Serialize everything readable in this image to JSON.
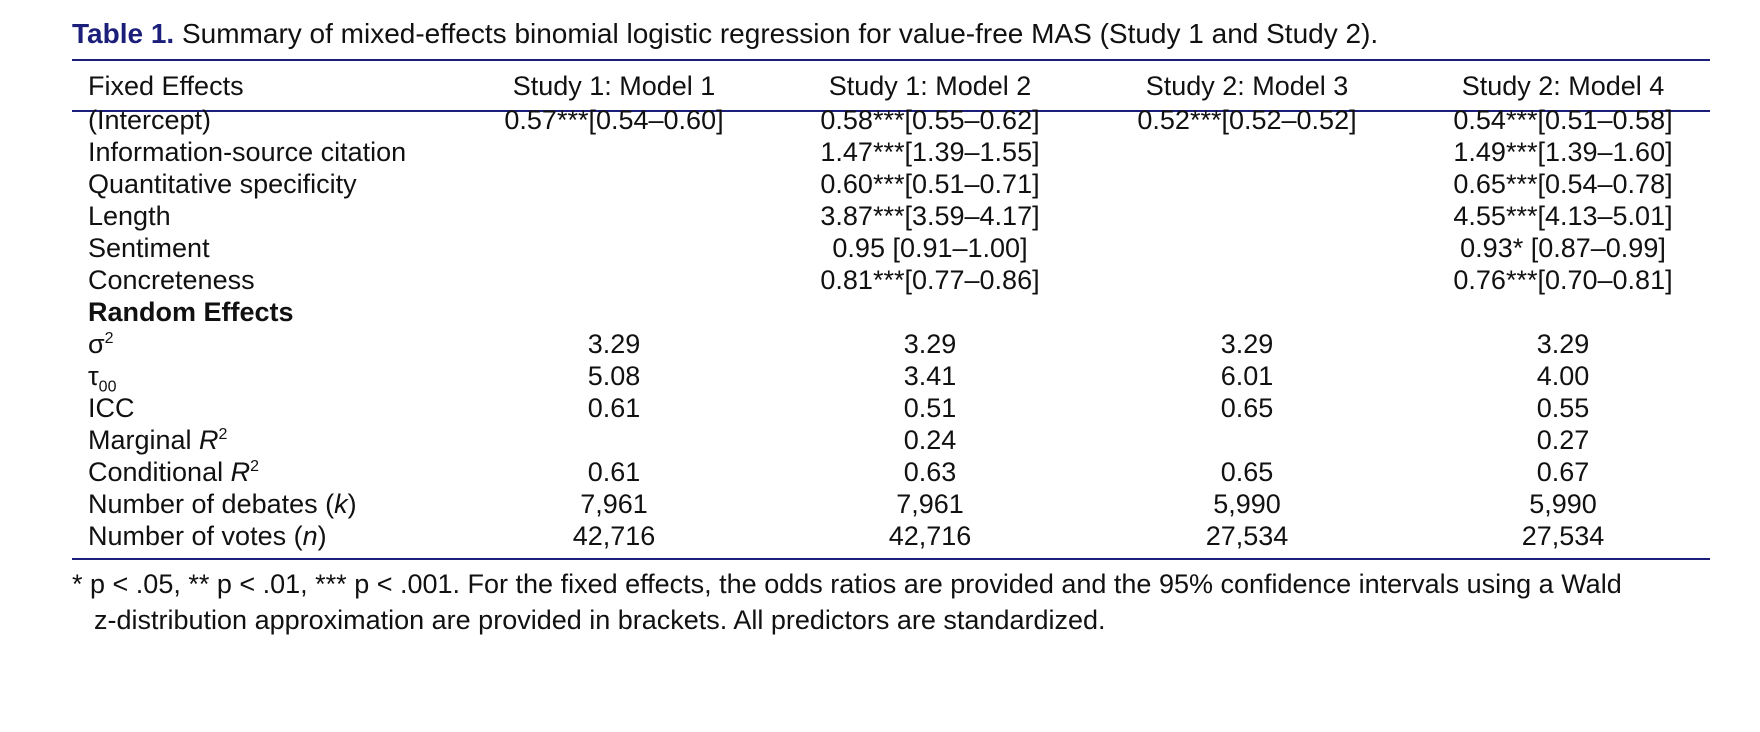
{
  "caption": {
    "label": "Table 1.",
    "text": "Summary of mixed-effects binomial logistic regression for value-free MAS (Study 1 and Study 2)."
  },
  "header": [
    "Fixed Effects",
    "Study 1: Model 1",
    "Study 1: Model 2",
    "Study 2: Model 3",
    "Study 2: Model 4"
  ],
  "fixed_effects": [
    {
      "label": "(Intercept)",
      "values": [
        "0.57***[0.54–0.60]",
        "0.58***[0.55–0.62]",
        "0.52***[0.52–0.52]",
        "0.54***[0.51–0.58]"
      ]
    },
    {
      "label": "Information-source citation",
      "values": [
        "",
        "1.47***[1.39–1.55]",
        "",
        "1.49***[1.39–1.60]"
      ]
    },
    {
      "label": "Quantitative specificity",
      "values": [
        "",
        "0.60***[0.51–0.71]",
        "",
        "0.65***[0.54–0.78]"
      ]
    },
    {
      "label": "Length",
      "values": [
        "",
        "3.87***[3.59–4.17]",
        "",
        "4.55***[4.13–5.01]"
      ]
    },
    {
      "label": "Sentiment",
      "values": [
        "",
        "0.95 [0.91–1.00]",
        "",
        "0.93* [0.87–0.99]"
      ]
    },
    {
      "label": "Concreteness",
      "values": [
        "",
        "0.81***[0.77–0.86]",
        "",
        "0.76***[0.70–0.81]"
      ]
    }
  ],
  "random_effects_heading": "Random Effects",
  "random_effects": [
    {
      "label_base": "σ",
      "label_sup": "2",
      "values": [
        "3.29",
        "3.29",
        "3.29",
        "3.29"
      ]
    },
    {
      "label_base": "τ",
      "label_sub": "00",
      "values": [
        "5.08",
        "3.41",
        "6.01",
        "4.00"
      ]
    },
    {
      "label_base": "ICC",
      "values": [
        "0.61",
        "0.51",
        "0.65",
        "0.55"
      ]
    },
    {
      "label_base": "Marginal ",
      "label_italic": "R",
      "label_sup": "2",
      "values": [
        "",
        "0.24",
        "",
        "0.27"
      ]
    },
    {
      "label_base": "Conditional ",
      "label_italic": "R",
      "label_sup": "2",
      "values": [
        "0.61",
        "0.63",
        "0.65",
        "0.67"
      ]
    },
    {
      "label_base": "Number of debates (",
      "label_italic": "k",
      "label_after": ")",
      "values": [
        "7,961",
        "7,961",
        "5,990",
        "5,990"
      ]
    },
    {
      "label_base": "Number of votes (",
      "label_italic": "n",
      "label_after": ")",
      "values": [
        "42,716",
        "42,716",
        "27,534",
        "27,534"
      ]
    }
  ],
  "footnote": {
    "line1": "* p < .05, ** p < .01, *** p < .001. For the fixed effects, the odds ratios are provided and the 95% confidence intervals using a Wald",
    "line2": "z-distribution approximation are provided in brackets. All predictors are standardized."
  }
}
